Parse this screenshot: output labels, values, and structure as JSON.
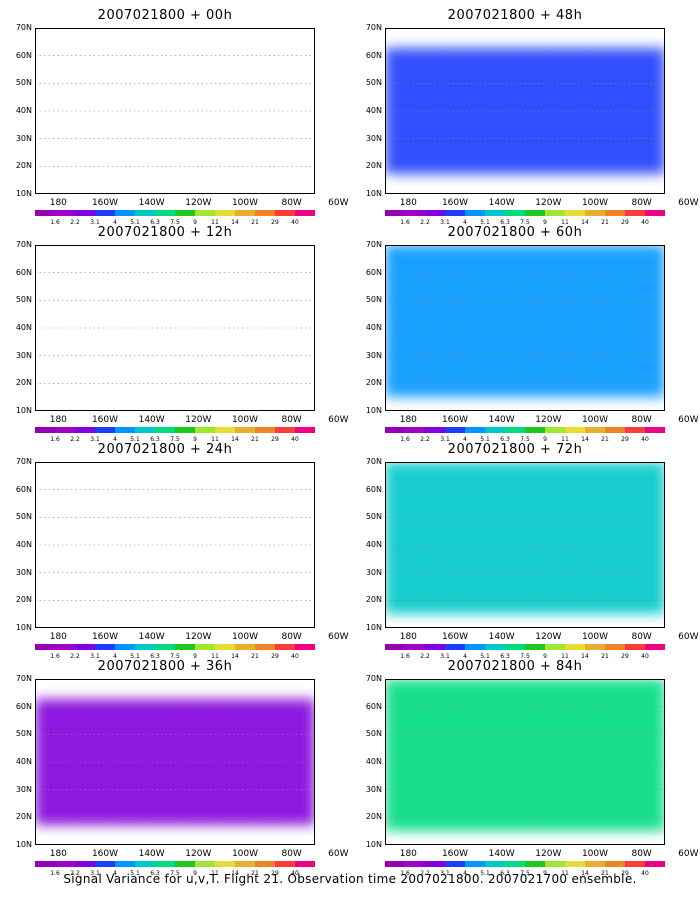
{
  "panels": [
    {
      "title": "2007021800 + 00h",
      "intensity": 0
    },
    {
      "title": "2007021800 + 12h",
      "intensity": 1
    },
    {
      "title": "2007021800 + 24h",
      "intensity": 2
    },
    {
      "title": "2007021800 + 36h",
      "intensity": 3
    },
    {
      "title": "2007021800 + 48h",
      "intensity": 4
    },
    {
      "title": "2007021800 + 60h",
      "intensity": 5
    },
    {
      "title": "2007021800 + 72h",
      "intensity": 6
    },
    {
      "title": "2007021800 + 84h",
      "intensity": 7
    }
  ],
  "lat_labels": [
    "70N",
    "60N",
    "50N",
    "40N",
    "30N",
    "20N",
    "10N"
  ],
  "lon_labels": [
    "180",
    "160W",
    "140W",
    "120W",
    "100W",
    "80W",
    "60W"
  ],
  "colorbar": {
    "labels": [
      "1.6",
      "2.2",
      "3.1",
      "4",
      "5.1",
      "6.3",
      "7.5",
      "9",
      "11",
      "14",
      "21",
      "29",
      "40"
    ],
    "colors": [
      "#a000c8",
      "#8200dc",
      "#1e3cff",
      "#0096ff",
      "#00c8c8",
      "#00dc82",
      "#1ec81e",
      "#a0e632",
      "#e6dc32",
      "#e6af2d",
      "#f08228",
      "#fa3c3c",
      "#f00082"
    ]
  },
  "caption": "Signal Variance for u,v,T. Flight 21. Observation time 2007021800. 2007021700 ensemble."
}
